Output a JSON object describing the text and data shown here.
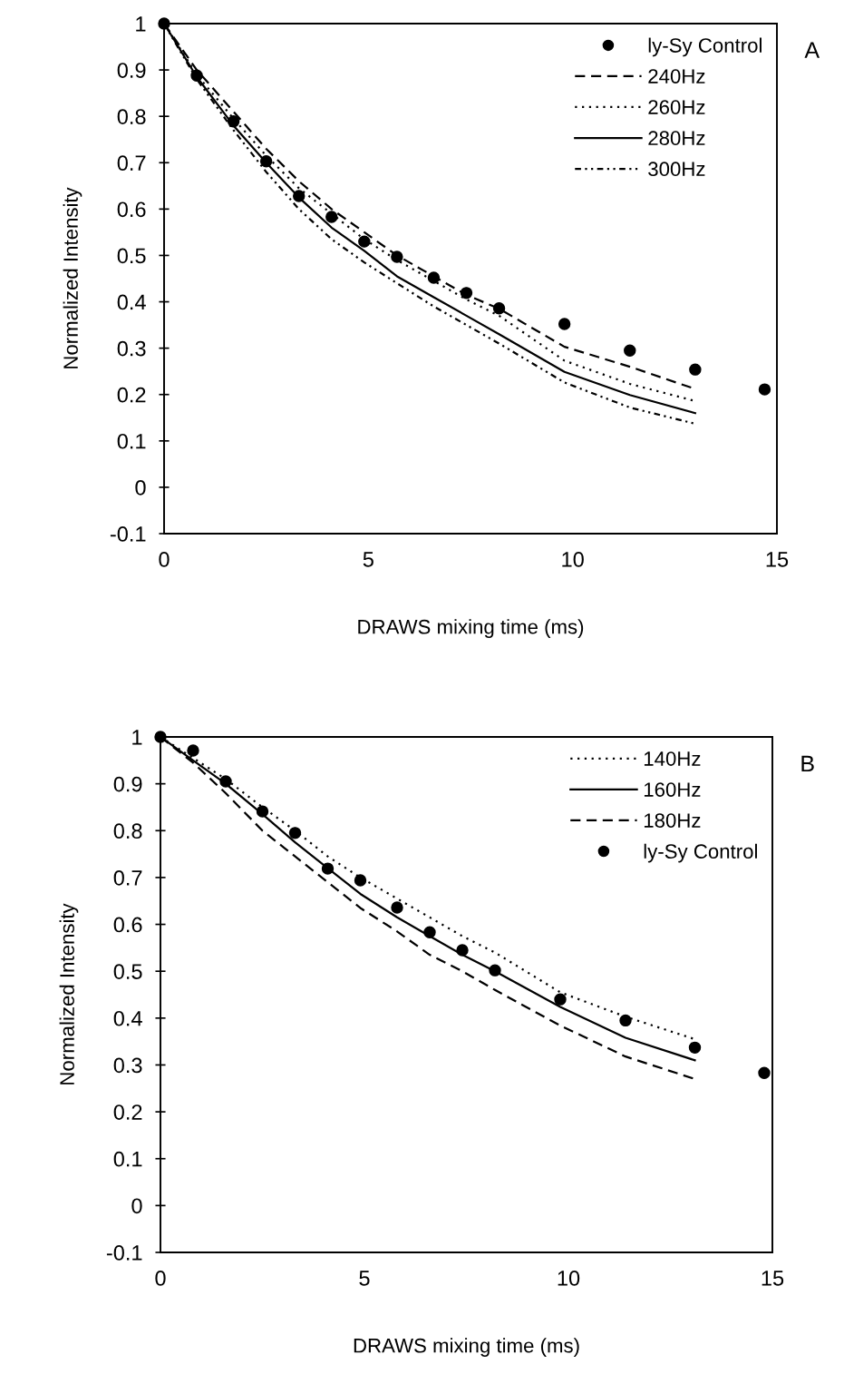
{
  "chart_data": [
    {
      "type": "line",
      "xlabel": "DRAWS mixing time (ms)",
      "ylabel": "Normalized Intensity",
      "annotations": [
        "A"
      ],
      "xlim": [
        0,
        15
      ],
      "xticks": [
        0,
        5,
        10,
        15
      ],
      "ylim": [
        -0.1,
        1
      ],
      "yticks": [
        -0.1,
        0,
        0.1,
        0.2,
        0.3,
        0.4,
        0.5,
        0.6,
        0.7,
        0.8,
        0.9,
        1
      ],
      "grid": false,
      "legend": "top right",
      "series": [
        {
          "name": "ly-Sy Control",
          "type": "scatter",
          "marker": "circle",
          "color": "#000000",
          "x": [
            0,
            0.8,
            1.7,
            2.5,
            3.3,
            4.1,
            4.9,
            5.7,
            6.6,
            7.4,
            8.2,
            9.8,
            11.4,
            13.0,
            14.7
          ],
          "values": [
            1.0,
            0.888,
            0.789,
            0.703,
            0.628,
            0.583,
            0.53,
            0.497,
            0.452,
            0.419,
            0.386,
            0.352,
            0.295,
            0.254,
            0.211
          ]
        },
        {
          "name": "240Hz",
          "line_style": "dashed",
          "color": "#000000",
          "x": [
            0,
            0.8,
            1.7,
            2.5,
            3.3,
            4.1,
            4.9,
            5.7,
            6.6,
            7.4,
            8.2,
            9.8,
            11.4,
            13.0
          ],
          "values": [
            1,
            0.9,
            0.81,
            0.73,
            0.66,
            0.6,
            0.55,
            0.5,
            0.455,
            0.415,
            0.385,
            0.303,
            0.26,
            0.212
          ]
        },
        {
          "name": "260Hz",
          "line_style": "dotted",
          "color": "#000000",
          "x": [
            0,
            0.8,
            1.7,
            2.5,
            3.3,
            4.1,
            4.9,
            5.7,
            6.6,
            7.4,
            8.2,
            9.8,
            11.4,
            13.0
          ],
          "values": [
            1,
            0.89,
            0.795,
            0.715,
            0.645,
            0.59,
            0.535,
            0.49,
            0.445,
            0.405,
            0.37,
            0.273,
            0.223,
            0.186
          ]
        },
        {
          "name": "280Hz",
          "line_style": "solid",
          "color": "#000000",
          "x": [
            0,
            0.8,
            1.7,
            2.5,
            3.3,
            4.1,
            4.9,
            5.7,
            6.6,
            7.4,
            8.2,
            9.8,
            11.4,
            13.0
          ],
          "values": [
            1,
            0.885,
            0.78,
            0.7,
            0.625,
            0.56,
            0.51,
            0.455,
            0.41,
            0.37,
            0.33,
            0.249,
            0.199,
            0.16
          ]
        },
        {
          "name": "300Hz",
          "line_style": "dashdot",
          "color": "#000000",
          "x": [
            0,
            0.8,
            1.7,
            2.5,
            3.3,
            4.1,
            4.9,
            5.7,
            6.6,
            7.4,
            8.2,
            9.8,
            11.4,
            13.0
          ],
          "values": [
            1,
            0.88,
            0.77,
            0.68,
            0.6,
            0.535,
            0.485,
            0.44,
            0.39,
            0.35,
            0.31,
            0.226,
            0.172,
            0.137
          ]
        }
      ]
    },
    {
      "type": "line",
      "xlabel": "DRAWS mixing time (ms)",
      "ylabel": "Normalized Intensity",
      "annotations": [
        "B"
      ],
      "xlim": [
        0,
        15
      ],
      "xticks": [
        0,
        5,
        10,
        15
      ],
      "ylim": [
        -0.1,
        1
      ],
      "yticks": [
        -0.1,
        0,
        0.1,
        0.2,
        0.3,
        0.4,
        0.5,
        0.6,
        0.7,
        0.8,
        0.9,
        1
      ],
      "grid": false,
      "legend": "top right",
      "series": [
        {
          "name": "140Hz",
          "line_style": "dotted",
          "color": "#000000",
          "x": [
            0,
            0.8,
            1.6,
            2.5,
            3.3,
            4.1,
            4.9,
            5.8,
            6.6,
            7.4,
            8.2,
            9.8,
            11.4,
            13.1
          ],
          "values": [
            1,
            0.955,
            0.91,
            0.85,
            0.8,
            0.745,
            0.7,
            0.655,
            0.615,
            0.575,
            0.54,
            0.455,
            0.403,
            0.355
          ]
        },
        {
          "name": "160Hz",
          "line_style": "solid",
          "color": "#000000",
          "x": [
            0,
            0.8,
            1.6,
            2.5,
            3.3,
            4.1,
            4.9,
            5.8,
            6.6,
            7.4,
            8.2,
            9.8,
            11.4,
            13.1
          ],
          "values": [
            1,
            0.95,
            0.9,
            0.835,
            0.775,
            0.72,
            0.665,
            0.615,
            0.575,
            0.535,
            0.5,
            0.424,
            0.358,
            0.31
          ]
        },
        {
          "name": "180Hz",
          "line_style": "dashed",
          "color": "#000000",
          "x": [
            0,
            0.8,
            1.6,
            2.5,
            3.3,
            4.1,
            4.9,
            5.8,
            6.6,
            7.4,
            8.2,
            9.8,
            11.4,
            13.1
          ],
          "values": [
            1,
            0.945,
            0.88,
            0.8,
            0.745,
            0.69,
            0.635,
            0.585,
            0.535,
            0.5,
            0.46,
            0.384,
            0.318,
            0.27
          ]
        },
        {
          "name": "ly-Sy Control",
          "type": "scatter",
          "marker": "circle",
          "color": "#000000",
          "x": [
            0,
            0.8,
            1.6,
            2.5,
            3.3,
            4.1,
            4.9,
            5.8,
            6.6,
            7.4,
            8.2,
            9.8,
            11.4,
            13.1,
            14.8
          ],
          "values": [
            1.0,
            0.971,
            0.905,
            0.841,
            0.795,
            0.719,
            0.694,
            0.636,
            0.583,
            0.545,
            0.502,
            0.44,
            0.395,
            0.337,
            0.283
          ]
        }
      ]
    }
  ]
}
